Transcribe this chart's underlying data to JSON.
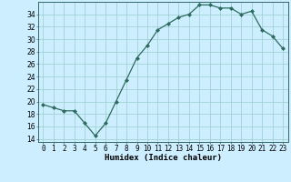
{
  "x": [
    0,
    1,
    2,
    3,
    4,
    5,
    6,
    7,
    8,
    9,
    10,
    11,
    12,
    13,
    14,
    15,
    16,
    17,
    18,
    19,
    20,
    21,
    22,
    23
  ],
  "y": [
    19.5,
    19.0,
    18.5,
    18.5,
    16.5,
    14.5,
    16.5,
    20.0,
    23.5,
    27.0,
    29.0,
    31.5,
    32.5,
    33.5,
    34.0,
    35.5,
    35.5,
    35.0,
    35.0,
    34.0,
    34.5,
    31.5,
    30.5,
    28.5
  ],
  "xlabel": "Humidex (Indice chaleur)",
  "xlim": [
    -0.5,
    23.5
  ],
  "ylim": [
    13.5,
    36.0
  ],
  "yticks": [
    14,
    16,
    18,
    20,
    22,
    24,
    26,
    28,
    30,
    32,
    34
  ],
  "xticks": [
    0,
    1,
    2,
    3,
    4,
    5,
    6,
    7,
    8,
    9,
    10,
    11,
    12,
    13,
    14,
    15,
    16,
    17,
    18,
    19,
    20,
    21,
    22,
    23
  ],
  "line_color": "#2d6b5e",
  "marker_color": "#2d6b5e",
  "bg_color": "#cceeff",
  "grid_color": "#99cccc",
  "label_fontsize": 6.5,
  "tick_fontsize": 5.5
}
